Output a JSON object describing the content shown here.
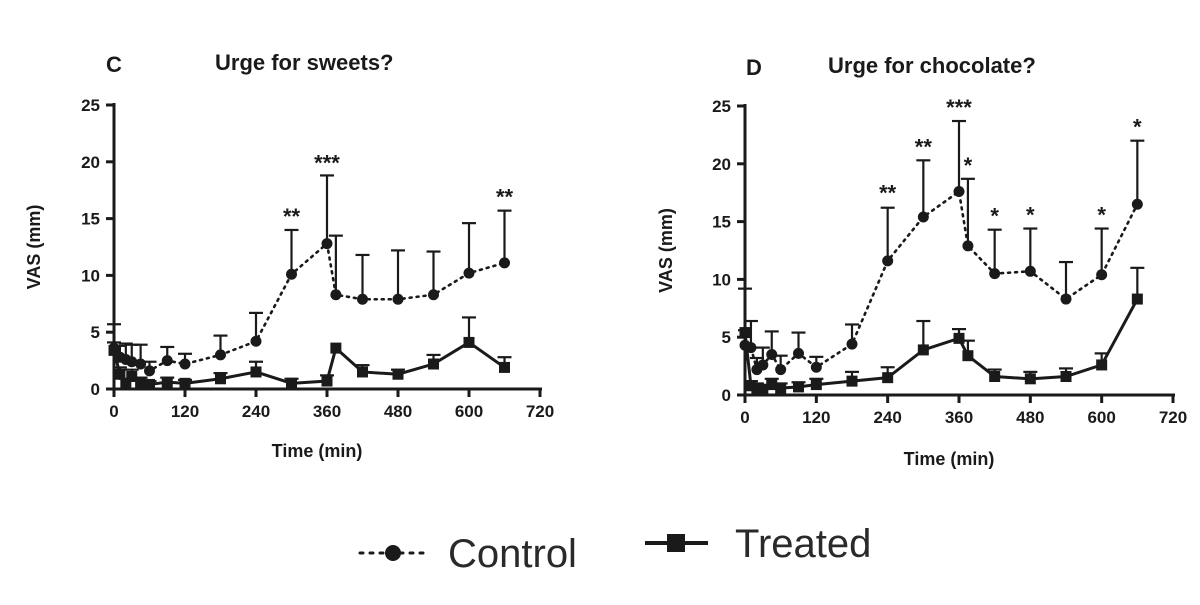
{
  "legend": {
    "control": "Control",
    "treated": "Treated"
  },
  "chart_data": [
    {
      "type": "line",
      "panel": "C",
      "title": "Urge for sweets?",
      "xlabel": "Time (min)",
      "ylabel": "VAS (mm)",
      "xlim": [
        0,
        720
      ],
      "ylim": [
        0,
        25
      ],
      "xticks": [
        0,
        120,
        240,
        360,
        480,
        600,
        720
      ],
      "yticks": [
        0,
        5,
        10,
        15,
        20,
        25
      ],
      "series": [
        {
          "name": "Control",
          "style": "dotted-circle",
          "x": [
            0,
            10,
            20,
            30,
            45,
            60,
            90,
            120,
            180,
            240,
            300,
            360,
            375,
            420,
            480,
            540,
            600,
            660
          ],
          "y": [
            3.6,
            2.8,
            2.6,
            2.4,
            2.2,
            1.6,
            2.5,
            2.2,
            3.0,
            4.2,
            10.1,
            12.8,
            8.3,
            7.9,
            7.9,
            8.3,
            10.2,
            11.1
          ],
          "err": [
            0.5,
            1.0,
            1.4,
            1.5,
            1.7,
            0.8,
            1.2,
            0.9,
            1.7,
            2.5,
            3.9,
            6.0,
            5.2,
            3.9,
            4.3,
            3.8,
            4.4,
            4.6
          ]
        },
        {
          "name": "Treated",
          "style": "solid-square",
          "x": [
            0,
            10,
            20,
            30,
            45,
            60,
            90,
            120,
            180,
            240,
            300,
            360,
            375,
            420,
            480,
            540,
            600,
            660
          ],
          "y": [
            3.4,
            1.3,
            0.5,
            1.1,
            0.6,
            0.4,
            0.6,
            0.5,
            0.9,
            1.5,
            0.5,
            0.7,
            3.6,
            1.5,
            1.3,
            2.2,
            4.1,
            1.9
          ],
          "err": [
            2.3,
            0.6,
            0.4,
            0.6,
            0.4,
            0.3,
            0.4,
            0.3,
            0.5,
            0.9,
            0.4,
            0.5,
            0.0,
            0.6,
            0.4,
            0.8,
            2.2,
            0.9
          ]
        }
      ],
      "annotations": [
        {
          "x": 300,
          "y": 14.0,
          "text": "**"
        },
        {
          "x": 360,
          "y": 18.7,
          "text": "***"
        },
        {
          "x": 660,
          "y": 15.7,
          "text": "**"
        }
      ]
    },
    {
      "type": "line",
      "panel": "D",
      "title": "Urge for chocolate?",
      "xlabel": "Time (min)",
      "ylabel": "VAS (mm)",
      "xlim": [
        0,
        720
      ],
      "ylim": [
        0,
        25
      ],
      "xticks": [
        0,
        120,
        240,
        360,
        480,
        600,
        720
      ],
      "yticks": [
        0,
        5,
        10,
        15,
        20,
        25
      ],
      "series": [
        {
          "name": "Control",
          "style": "dotted-circle",
          "x": [
            0,
            10,
            20,
            30,
            45,
            60,
            90,
            120,
            180,
            240,
            300,
            360,
            375,
            420,
            480,
            540,
            600,
            660
          ],
          "y": [
            4.3,
            4.1,
            2.2,
            2.6,
            3.5,
            2.2,
            3.6,
            2.4,
            4.4,
            11.6,
            15.4,
            17.6,
            12.9,
            10.5,
            10.7,
            8.3,
            10.4,
            16.5
          ],
          "err": [
            1.3,
            2.3,
            1.0,
            1.5,
            2.0,
            1.2,
            1.8,
            0.9,
            1.7,
            4.6,
            4.9,
            6.1,
            5.8,
            3.8,
            3.7,
            3.2,
            4.0,
            5.5
          ]
        },
        {
          "name": "Treated",
          "style": "solid-square",
          "x": [
            0,
            10,
            20,
            30,
            45,
            60,
            90,
            120,
            180,
            240,
            300,
            360,
            375,
            420,
            480,
            540,
            600,
            660
          ],
          "y": [
            5.4,
            0.8,
            0.6,
            0.5,
            0.9,
            0.6,
            0.7,
            0.9,
            1.2,
            1.5,
            3.9,
            4.9,
            3.4,
            1.6,
            1.4,
            1.6,
            2.6,
            8.3
          ],
          "err": [
            3.8,
            0.4,
            0.4,
            0.3,
            0.5,
            0.4,
            0.4,
            0.5,
            0.8,
            0.9,
            2.5,
            0.8,
            1.3,
            0.6,
            0.6,
            0.7,
            1.0,
            2.7
          ]
        }
      ],
      "annotations": [
        {
          "x": 240,
          "y": 16.3,
          "text": "**"
        },
        {
          "x": 300,
          "y": 20.3,
          "text": "**"
        },
        {
          "x": 360,
          "y": 23.7,
          "text": "***"
        },
        {
          "x": 375,
          "y": 18.7,
          "text": "*"
        },
        {
          "x": 420,
          "y": 14.3,
          "text": "*"
        },
        {
          "x": 480,
          "y": 14.4,
          "text": "*"
        },
        {
          "x": 600,
          "y": 14.4,
          "text": "*"
        },
        {
          "x": 660,
          "y": 22.0,
          "text": "*"
        }
      ]
    }
  ]
}
